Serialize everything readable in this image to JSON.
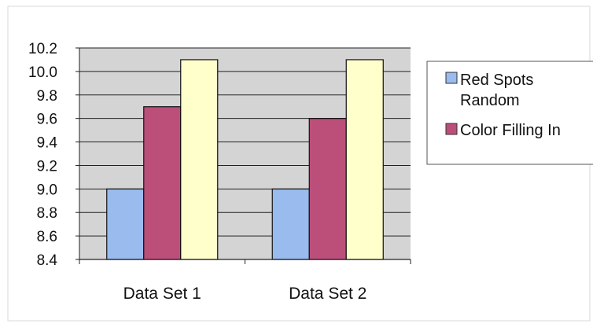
{
  "chart_data": {
    "type": "bar",
    "categories": [
      "Data Set 1",
      "Data Set 2"
    ],
    "series": [
      {
        "name": "Red Spots Random",
        "values": [
          9.0,
          9.0
        ],
        "color": "#99bbee"
      },
      {
        "name": "Color Filling In",
        "values": [
          9.7,
          9.6
        ],
        "color": "#bb4f7a"
      },
      {
        "values": [
          10.1,
          10.1
        ],
        "color": "#ffffcc"
      }
    ],
    "ylim": [
      8.4,
      10.2
    ],
    "yticks": [
      "8.4",
      "8.6",
      "8.8",
      "9.0",
      "9.2",
      "9.4",
      "9.6",
      "9.8",
      "10.0",
      "10.2"
    ],
    "grid": true,
    "legend": {
      "placement": "right",
      "entries": [
        {
          "line1": "Red Spots",
          "line2": "Random"
        },
        {
          "line1": "Color Filling In",
          "line2": ""
        }
      ]
    },
    "plot_background": "#d4d4d4"
  }
}
